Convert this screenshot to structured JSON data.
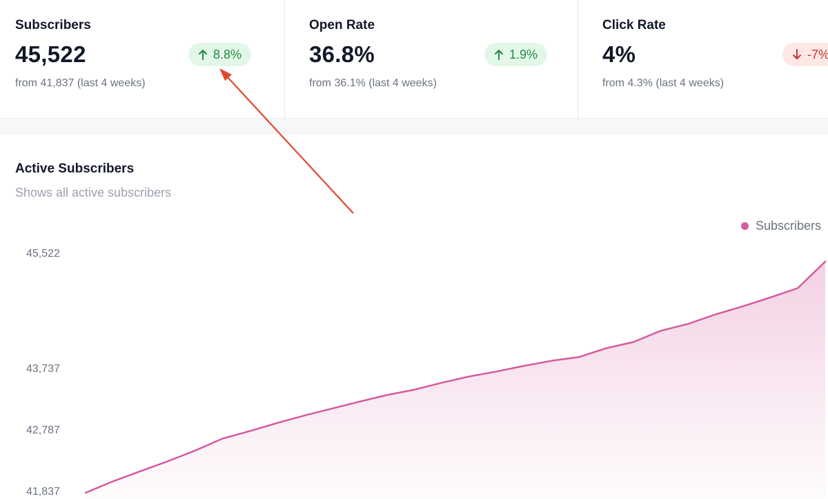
{
  "stats": [
    {
      "title": "Subscribers",
      "value": "45,522",
      "change": "8.8%",
      "direction": "up",
      "subtitle": "from 41,837 (last 4 weeks)"
    },
    {
      "title": "Open Rate",
      "value": "36.8%",
      "change": "1.9%",
      "direction": "up",
      "subtitle": "from 36.1% (last 4 weeks)"
    },
    {
      "title": "Click Rate",
      "value": "4%",
      "change": "-7%",
      "direction": "down",
      "subtitle": "from 4.3% (last 4 weeks)"
    }
  ],
  "chart": {
    "title": "Active Subscribers",
    "subtitle": "Shows all active subscribers",
    "legend_label": "Subscribers"
  },
  "colors": {
    "series": "#d45a9e",
    "up": "#1f8a44",
    "down": "#c0392b",
    "annotation_arrow": "#e2462c"
  },
  "icons": {
    "up": "arrow-up-icon",
    "down": "arrow-down-icon"
  },
  "chart_data": {
    "type": "area",
    "title": "Active Subscribers",
    "series": [
      {
        "name": "Subscribers",
        "values": [
          41837,
          42020,
          42180,
          42340,
          42510,
          42700,
          42820,
          42950,
          43070,
          43180,
          43290,
          43395,
          43480,
          43590,
          43690,
          43770,
          43860,
          43940,
          44000,
          44140,
          44240,
          44420,
          44530,
          44680,
          44810,
          44950,
          45100,
          45522
        ]
      }
    ],
    "yticks": [
      "41,837",
      "42,787",
      "43,737",
      "45,522"
    ],
    "ylim": [
      41837,
      45522
    ],
    "grid": false,
    "legend": "top-right"
  }
}
